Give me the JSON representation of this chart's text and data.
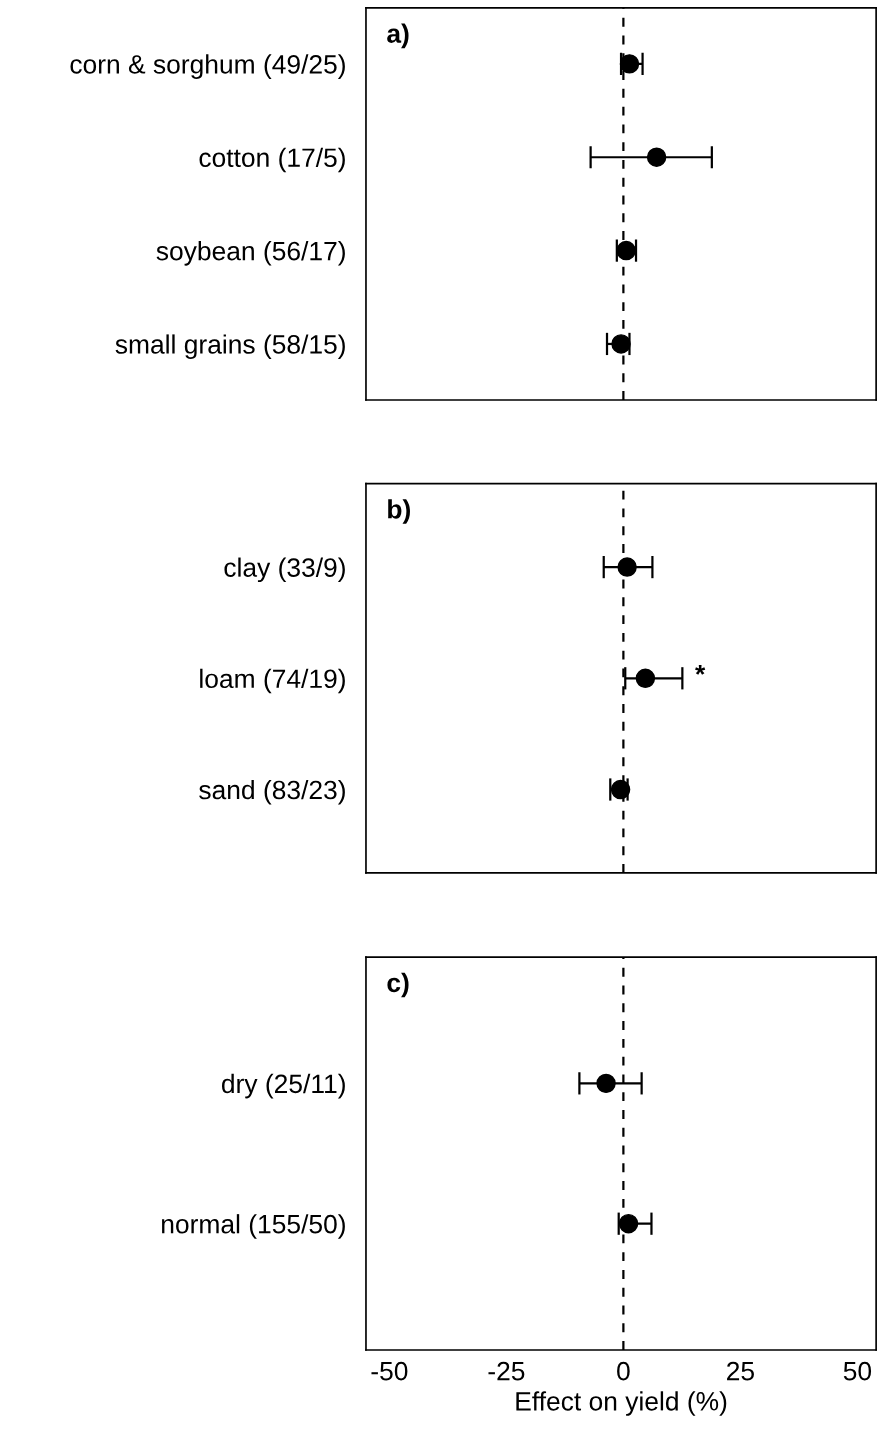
{
  "chart_data": [
    {
      "type": "scatter",
      "orientation": "horizontal",
      "categories": [
        "corn & sorghum (49/25)",
        "cotton (17/5)",
        "soybean (56/17)",
        "small grains (58/15)"
      ],
      "values": [
        1.3,
        7.1,
        0.6,
        -0.5
      ],
      "errors": [
        [
          -0.5,
          4.1
        ],
        [
          -7.0,
          18.9
        ],
        [
          -1.4,
          2.7
        ],
        [
          -3.5,
          1.3
        ]
      ],
      "color": "#000000",
      "marker": "circle",
      "xlim": [
        -55,
        54
      ],
      "xticks": [
        -50,
        -25,
        0,
        25,
        50
      ],
      "tick_labels": "y",
      "grid": false,
      "ref_lines": [
        {
          "axis": "x",
          "value": 0,
          "line_style": "dashed",
          "color": "#000000"
        }
      ],
      "annotations": [
        "a)"
      ]
    },
    {
      "type": "scatter",
      "orientation": "horizontal",
      "categories": [
        "clay (33/9)",
        "loam (74/19)",
        "sand (83/23)"
      ],
      "values": [
        0.8,
        4.7,
        -0.6
      ],
      "errors": [
        [
          -4.2,
          6.2
        ],
        [
          0.4,
          12.6
        ],
        [
          -2.8,
          0.9
        ]
      ],
      "color": "#000000",
      "marker": "circle",
      "xlim": [
        -55,
        54
      ],
      "xticks": [
        -50,
        -25,
        0,
        25,
        50
      ],
      "tick_labels": "y",
      "grid": false,
      "ref_lines": [
        {
          "axis": "x",
          "value": 0,
          "line_style": "dashed",
          "color": "#000000"
        }
      ],
      "annotations": [
        "b)",
        "*"
      ]
    },
    {
      "type": "scatter",
      "orientation": "horizontal",
      "categories": [
        "dry (25/11)",
        "normal (155/50)"
      ],
      "values": [
        -3.7,
        1.1
      ],
      "errors": [
        [
          -9.4,
          3.9
        ],
        [
          -1.0,
          6.0
        ]
      ],
      "color": "#000000",
      "marker": "circle",
      "xlim": [
        -55,
        54
      ],
      "xticks": [
        -50,
        -25,
        0,
        25,
        50
      ],
      "xlabel": "Effect on yield (%)",
      "grid": false,
      "ref_lines": [
        {
          "axis": "x",
          "value": 0,
          "line_style": "dashed",
          "color": "#000000"
        }
      ],
      "annotations": [
        "c)"
      ]
    }
  ]
}
